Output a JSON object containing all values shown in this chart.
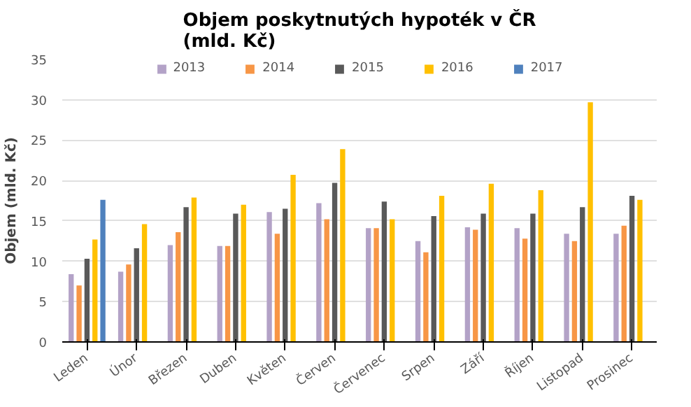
{
  "chart_data": {
    "type": "bar",
    "title": "Objem poskytnutých hypoték v ČR\n(mld. Kč)",
    "ylabel": "Objem (mld. Kč)",
    "categories": [
      "Leden",
      "Únor",
      "Březen",
      "Duben",
      "Květen",
      "Červen",
      "Červenec",
      "Srpen",
      "Září",
      "Říjen",
      "Listopad",
      "Prosinec"
    ],
    "series": [
      {
        "name": "2013",
        "color": "#b3a2c7",
        "values": [
          8.4,
          8.7,
          12.0,
          11.9,
          16.1,
          17.2,
          14.1,
          12.5,
          14.2,
          14.1,
          13.4,
          13.4
        ]
      },
      {
        "name": "2014",
        "color": "#f79646",
        "values": [
          7.0,
          9.6,
          13.6,
          11.9,
          13.4,
          15.2,
          14.1,
          11.1,
          13.9,
          12.8,
          12.5,
          14.4
        ]
      },
      {
        "name": "2015",
        "color": "#595959",
        "values": [
          10.3,
          11.6,
          16.7,
          15.9,
          16.5,
          19.7,
          17.4,
          15.6,
          15.9,
          15.9,
          16.7,
          18.1
        ]
      },
      {
        "name": "2016",
        "color": "#ffc000",
        "values": [
          12.7,
          14.6,
          17.9,
          17.0,
          20.7,
          23.9,
          15.2,
          18.1,
          19.6,
          18.8,
          29.7,
          17.6
        ]
      },
      {
        "name": "2017",
        "color": "#4f81bd",
        "values": [
          17.6,
          null,
          null,
          null,
          null,
          null,
          null,
          null,
          null,
          null,
          null,
          null
        ]
      }
    ],
    "ylim": [
      0,
      35
    ],
    "yticks": [
      0,
      5,
      10,
      15,
      20,
      25,
      30,
      35
    ],
    "grid": "y",
    "legend": "top"
  }
}
